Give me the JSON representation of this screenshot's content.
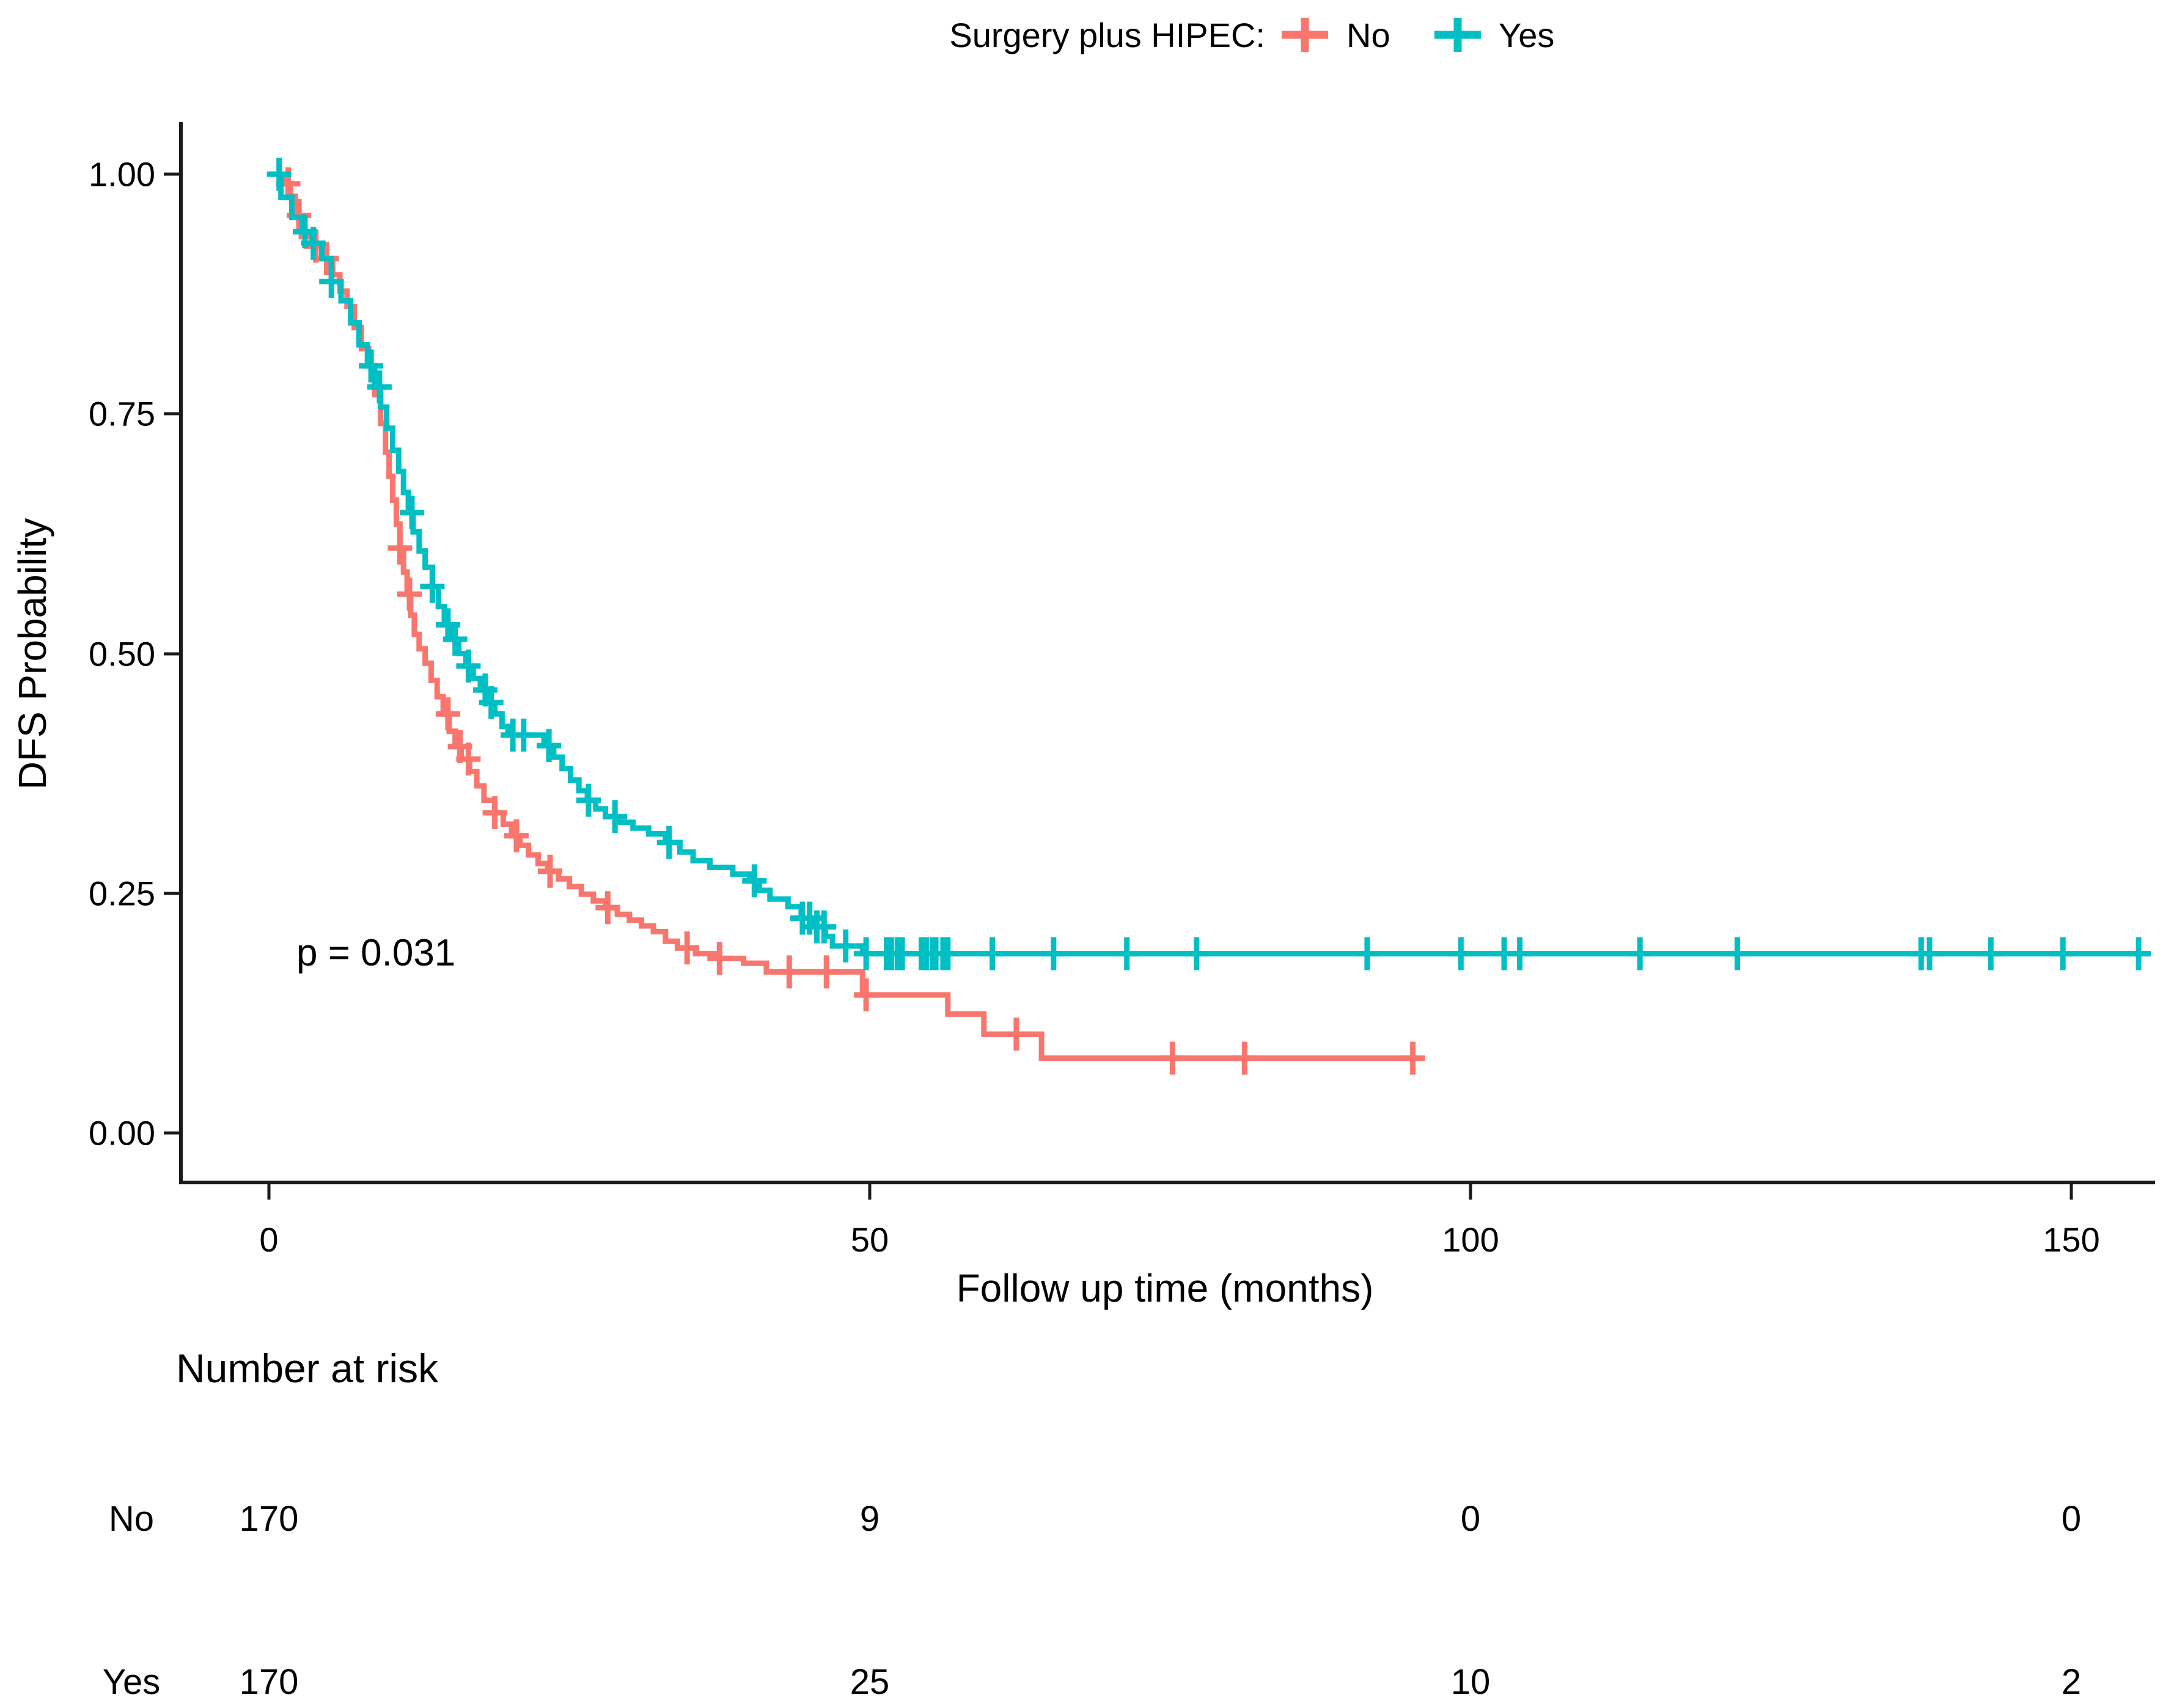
{
  "legend": {
    "title": "Surgery plus HIPEC:",
    "items": [
      {
        "label": "No",
        "color": "#F8766D"
      },
      {
        "label": "Yes",
        "color": "#00BFC4"
      }
    ]
  },
  "chart_data": {
    "type": "line",
    "subtype": "kaplan-meier-step",
    "title": "",
    "xlabel": "Follow up time (months)",
    "ylabel": "DFS Probability",
    "annotation": "p = 0.031",
    "xlim": [
      0,
      156.5
    ],
    "ylim": [
      0,
      1
    ],
    "grid": false,
    "legend_position": "top",
    "x_tick_values": [
      0,
      50,
      100,
      150
    ],
    "x_tick_labels": [
      "0",
      "50",
      "100",
      "150"
    ],
    "y_tick_values": [
      1.0,
      0.75,
      0.5,
      0.25,
      0.0
    ],
    "y_tick_labels": [
      "1.00",
      "0.75",
      "0.50",
      "0.25",
      "0.00"
    ],
    "series": [
      {
        "name": "No",
        "color": "#F8766D",
        "end_month": 95.2,
        "steps": [
          [
            0,
            1.0
          ],
          [
            1.2,
            0.99
          ],
          [
            1.8,
            0.977
          ],
          [
            2.2,
            0.957
          ],
          [
            2.7,
            0.935
          ],
          [
            3.6,
            0.925
          ],
          [
            4.6,
            0.912
          ],
          [
            5.3,
            0.895
          ],
          [
            5.9,
            0.878
          ],
          [
            6.5,
            0.862
          ],
          [
            7.1,
            0.84
          ],
          [
            7.7,
            0.818
          ],
          [
            8.3,
            0.8
          ],
          [
            8.8,
            0.77
          ],
          [
            9.3,
            0.74
          ],
          [
            9.7,
            0.71
          ],
          [
            10.0,
            0.685
          ],
          [
            10.3,
            0.66
          ],
          [
            10.6,
            0.635
          ],
          [
            10.9,
            0.61
          ],
          [
            11.2,
            0.585
          ],
          [
            11.5,
            0.562
          ],
          [
            11.8,
            0.54
          ],
          [
            12.1,
            0.52
          ],
          [
            12.5,
            0.505
          ],
          [
            13.0,
            0.49
          ],
          [
            13.5,
            0.472
          ],
          [
            14.0,
            0.455
          ],
          [
            14.5,
            0.437
          ],
          [
            15.0,
            0.419
          ],
          [
            15.5,
            0.403
          ],
          [
            16.0,
            0.39
          ],
          [
            16.7,
            0.377
          ],
          [
            17.3,
            0.362
          ],
          [
            17.9,
            0.347
          ],
          [
            18.8,
            0.334
          ],
          [
            19.5,
            0.322
          ],
          [
            20.2,
            0.31
          ],
          [
            20.9,
            0.3
          ],
          [
            21.6,
            0.29
          ],
          [
            22.4,
            0.281
          ],
          [
            23.2,
            0.273
          ],
          [
            24.1,
            0.265
          ],
          [
            25.0,
            0.257
          ],
          [
            26.0,
            0.249
          ],
          [
            27.0,
            0.242
          ],
          [
            28.0,
            0.235
          ],
          [
            29.0,
            0.228
          ],
          [
            30.0,
            0.222
          ],
          [
            31.0,
            0.216
          ],
          [
            32.0,
            0.21
          ],
          [
            33.0,
            0.2
          ],
          [
            34.0,
            0.193
          ],
          [
            35.5,
            0.187
          ],
          [
            37.5,
            0.182
          ],
          [
            39.5,
            0.177
          ],
          [
            41.4,
            0.168
          ],
          [
            49.4,
            0.144
          ],
          [
            56.5,
            0.124
          ],
          [
            59.5,
            0.103
          ],
          [
            64.3,
            0.078
          ]
        ],
        "censor_months": [
          1.6,
          2.5,
          3.9,
          4.8,
          10.9,
          11.7,
          14.9,
          15.9,
          16.6,
          18.8,
          20.6,
          23.4,
          28.2,
          34.8,
          37.5,
          43.3,
          46.4,
          49.7,
          62.2,
          75.2,
          81.2,
          95.2
        ]
      },
      {
        "name": "Yes",
        "color": "#00BFC4",
        "end_month": 156.5,
        "steps": [
          [
            0,
            1.0
          ],
          [
            1.0,
            0.976
          ],
          [
            1.9,
            0.955
          ],
          [
            2.8,
            0.94
          ],
          [
            3.6,
            0.928
          ],
          [
            4.4,
            0.912
          ],
          [
            5.2,
            0.888
          ],
          [
            6.0,
            0.868
          ],
          [
            6.8,
            0.845
          ],
          [
            7.5,
            0.822
          ],
          [
            8.2,
            0.8
          ],
          [
            8.8,
            0.778
          ],
          [
            9.3,
            0.757
          ],
          [
            9.8,
            0.735
          ],
          [
            10.3,
            0.712
          ],
          [
            10.8,
            0.69
          ],
          [
            11.2,
            0.668
          ],
          [
            11.6,
            0.647
          ],
          [
            12.0,
            0.627
          ],
          [
            12.5,
            0.607
          ],
          [
            13.0,
            0.59
          ],
          [
            13.6,
            0.57
          ],
          [
            14.1,
            0.549
          ],
          [
            14.6,
            0.53
          ],
          [
            15.2,
            0.515
          ],
          [
            15.8,
            0.5
          ],
          [
            16.4,
            0.487
          ],
          [
            17.0,
            0.474
          ],
          [
            17.6,
            0.462
          ],
          [
            18.2,
            0.449
          ],
          [
            18.8,
            0.437
          ],
          [
            19.4,
            0.424
          ],
          [
            19.9,
            0.415
          ],
          [
            22.9,
            0.404
          ],
          [
            23.7,
            0.392
          ],
          [
            24.4,
            0.38
          ],
          [
            25.1,
            0.368
          ],
          [
            25.8,
            0.357
          ],
          [
            26.5,
            0.347
          ],
          [
            27.2,
            0.338
          ],
          [
            28.0,
            0.33
          ],
          [
            29.0,
            0.324
          ],
          [
            30.3,
            0.318
          ],
          [
            31.6,
            0.312
          ],
          [
            33.0,
            0.303
          ],
          [
            34.2,
            0.293
          ],
          [
            35.3,
            0.284
          ],
          [
            36.7,
            0.277
          ],
          [
            38.6,
            0.27
          ],
          [
            40.0,
            0.263
          ],
          [
            40.8,
            0.253
          ],
          [
            41.7,
            0.244
          ],
          [
            43.2,
            0.236
          ],
          [
            44.3,
            0.224
          ],
          [
            45.3,
            0.215
          ],
          [
            46.3,
            0.205
          ],
          [
            46.9,
            0.195
          ],
          [
            49.4,
            0.187
          ]
        ],
        "censor_months": [
          0.85,
          3.0,
          3.7,
          5.2,
          8.5,
          9.2,
          11.9,
          13.6,
          14.9,
          15.5,
          16.6,
          18.0,
          18.5,
          20.3,
          21.2,
          23.3,
          26.6,
          28.8,
          33.3,
          40.4,
          44.4,
          45.0,
          45.6,
          46.2,
          48.0,
          49.7,
          51.4,
          51.8,
          52.3,
          52.7,
          54.3,
          54.7,
          55.2,
          55.5,
          56.1,
          56.5,
          60.2,
          65.3,
          71.4,
          77.2,
          91.4,
          99.2,
          102.8,
          104.1,
          114.1,
          122.2,
          137.5,
          138.2,
          143.3,
          149.3,
          155.6
        ]
      }
    ]
  },
  "risk_table": {
    "title": "Number at risk",
    "column_months": [
      0,
      50,
      100,
      150
    ],
    "rows": [
      {
        "label": "No",
        "color": "#F8766D",
        "values": [
          "170",
          "9",
          "0",
          "0"
        ]
      },
      {
        "label": "Yes",
        "color": "#00BFC4",
        "values": [
          "170",
          "25",
          "10",
          "2"
        ]
      }
    ]
  }
}
